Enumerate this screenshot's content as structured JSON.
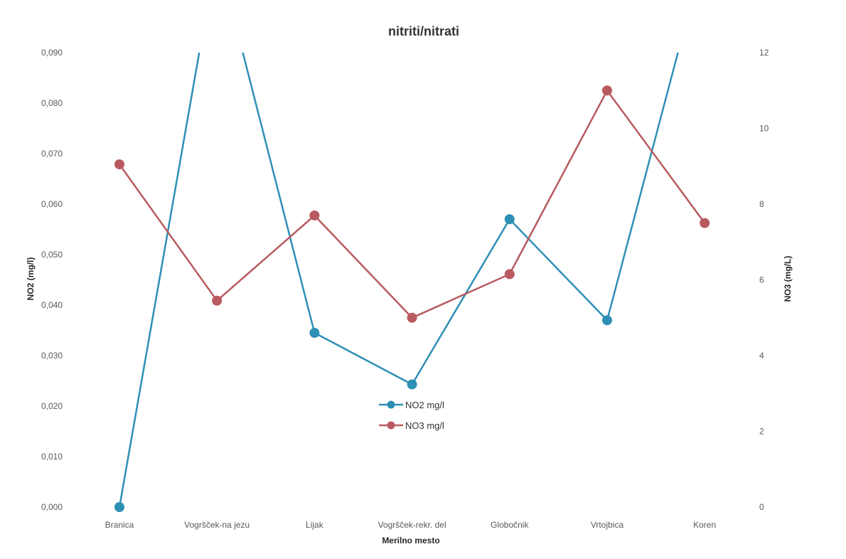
{
  "chart_data": {
    "type": "line",
    "title": "nitriti/nitrati",
    "xlabel": "Merilno mesto",
    "ylabel_left": "NO2 (mg/l)",
    "ylabel_right": "NO3 (mg/L)",
    "categories": [
      "Branica",
      "Vogršček-na jezu",
      "Lijak",
      "Vogršček-rekr. del",
      "Globočnik",
      "Vrtojbica",
      "Koren"
    ],
    "y_left_ticks": [
      "0,000",
      "0,010",
      "0,020",
      "0,030",
      "0,040",
      "0,050",
      "0,060",
      "0,070",
      "0,080",
      "0,090"
    ],
    "y_right_ticks": [
      "0",
      "2",
      "4",
      "6",
      "8",
      "10",
      "12"
    ],
    "ylim_left": [
      0,
      0.09
    ],
    "ylim_right": [
      0,
      12
    ],
    "grid": false,
    "legend_position": "center",
    "series": [
      {
        "name": "NO2 mg/l",
        "axis": "left",
        "color": "#2e8fb5",
        "values": [
          0.0,
          0.11,
          0.0345,
          0.0243,
          0.057,
          0.037,
          0.11
        ],
        "marker_shown": [
          true,
          false,
          true,
          true,
          true,
          true,
          false
        ]
      },
      {
        "name": "NO3 mg/l",
        "axis": "right",
        "color": "#b85a60",
        "values": [
          9.05,
          5.45,
          7.7,
          5.0,
          6.15,
          11.0,
          7.5
        ],
        "marker_shown": [
          true,
          true,
          true,
          true,
          true,
          true,
          true
        ]
      }
    ]
  }
}
